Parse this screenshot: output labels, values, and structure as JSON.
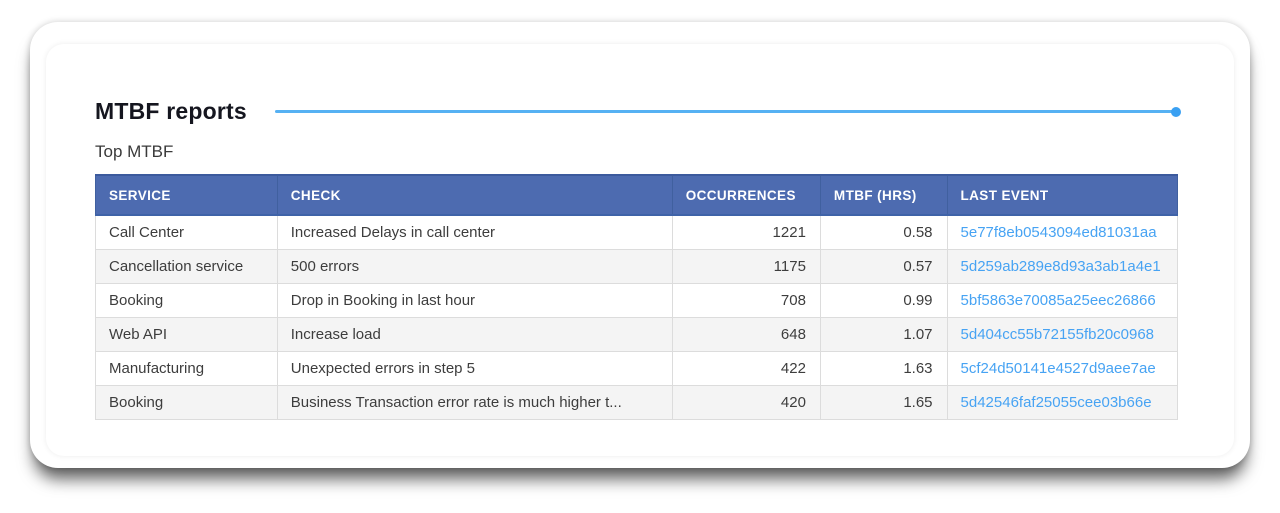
{
  "page": {
    "title": "MTBF reports",
    "subtitle": "Top MTBF"
  },
  "colors": {
    "header_bg": "#4d6bb0",
    "divider_blue": "#56b1f3",
    "divider_dot_blue": "#3aa0f2",
    "link_blue": "#47a3f3",
    "row_stripe_bg": "#f4f4f4",
    "cell_border": "#dcdcdc"
  },
  "table": {
    "columns": [
      {
        "key": "service",
        "label": "SERVICE",
        "align": "left"
      },
      {
        "key": "check",
        "label": "CHECK",
        "align": "left"
      },
      {
        "key": "occurrences",
        "label": "OCCURRENCES",
        "align": "right"
      },
      {
        "key": "mtbf_hrs",
        "label": "MTBF (HRS)",
        "align": "right"
      },
      {
        "key": "last_event",
        "label": "LAST EVENT",
        "align": "left"
      }
    ],
    "rows": [
      {
        "service": "Call Center",
        "check": "Increased Delays in call center",
        "occurrences": "1221",
        "mtbf_hrs": "0.58",
        "last_event": "5e77f8eb0543094ed81031aa"
      },
      {
        "service": "Cancellation service",
        "check": "500 errors",
        "occurrences": "1175",
        "mtbf_hrs": "0.57",
        "last_event": "5d259ab289e8d93a3ab1a4e1"
      },
      {
        "service": "Booking",
        "check": "Drop in Booking in last hour",
        "occurrences": "708",
        "mtbf_hrs": "0.99",
        "last_event": "5bf5863e70085a25eec26866"
      },
      {
        "service": "Web API",
        "check": "Increase load",
        "occurrences": "648",
        "mtbf_hrs": "1.07",
        "last_event": "5d404cc55b72155fb20c0968"
      },
      {
        "service": "Manufacturing",
        "check": "Unexpected errors in step 5",
        "occurrences": "422",
        "mtbf_hrs": "1.63",
        "last_event": "5cf24d50141e4527d9aee7ae"
      },
      {
        "service": "Booking",
        "check": "Business Transaction error rate is much higher t...",
        "occurrences": "420",
        "mtbf_hrs": "1.65",
        "last_event": "5d42546faf25055cee03b66e"
      }
    ]
  }
}
